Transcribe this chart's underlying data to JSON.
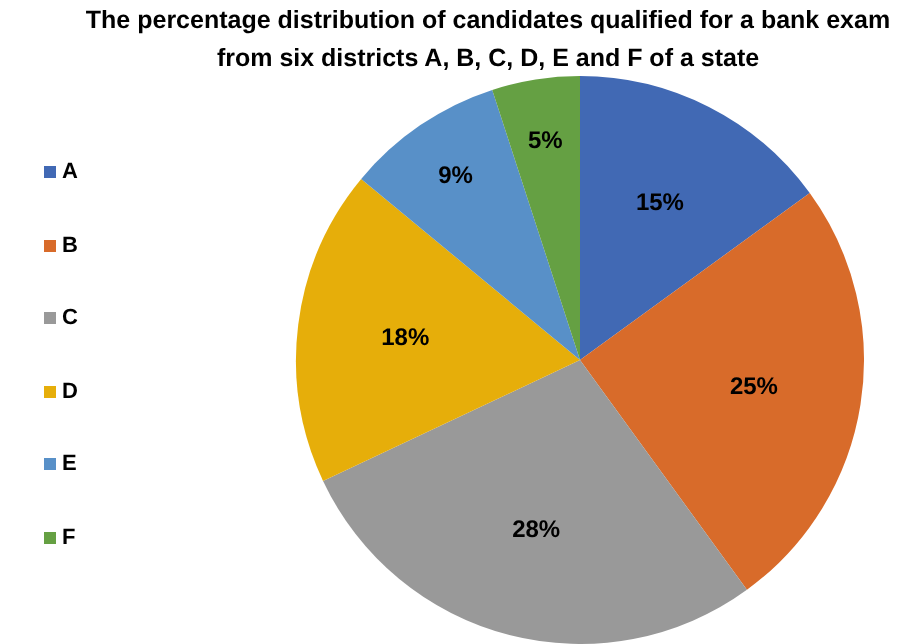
{
  "chart_data": {
    "type": "pie",
    "title": "The percentage distribution of candidates qualified for a bank exam from six districts A, B, C, D, E and F of a state",
    "categories": [
      "A",
      "B",
      "C",
      "D",
      "E",
      "F"
    ],
    "values": [
      15,
      25,
      28,
      18,
      9,
      5
    ],
    "colors": [
      "#4169b4",
      "#d86b2a",
      "#999999",
      "#e6ae0a",
      "#5890c8",
      "#65a043"
    ],
    "value_labels": [
      "15%",
      "25%",
      "28%",
      "18%",
      "9%",
      "5%"
    ],
    "legend": "left"
  }
}
